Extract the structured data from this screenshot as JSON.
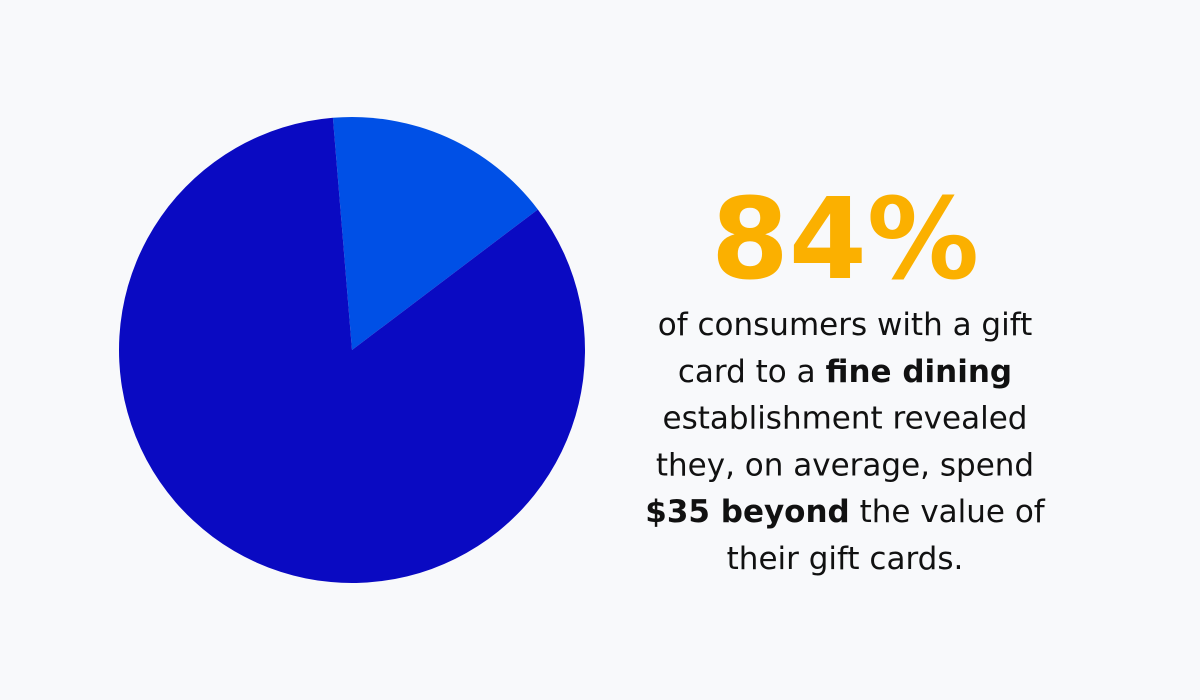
{
  "chart_data": {
    "type": "pie",
    "values": [
      84,
      16
    ],
    "value_labels": [
      "84%",
      null
    ],
    "colors": [
      "#0a0ac2",
      "#0050e6"
    ],
    "label_color": "#fbb000",
    "caption_lines": [
      [
        {
          "text": "of consumers with a gift",
          "bold": false
        }
      ],
      [
        {
          "text": "card to a ",
          "bold": false
        },
        {
          "text": "fine dining",
          "bold": true
        }
      ],
      [
        {
          "text": "establishment revealed",
          "bold": false
        }
      ],
      [
        {
          "text": "they, on average, spend",
          "bold": false
        }
      ],
      [
        {
          "text": "$35 beyond",
          "bold": true
        },
        {
          "text": " the value of",
          "bold": false
        }
      ],
      [
        {
          "text": "their gift cards.",
          "bold": false
        }
      ]
    ]
  }
}
